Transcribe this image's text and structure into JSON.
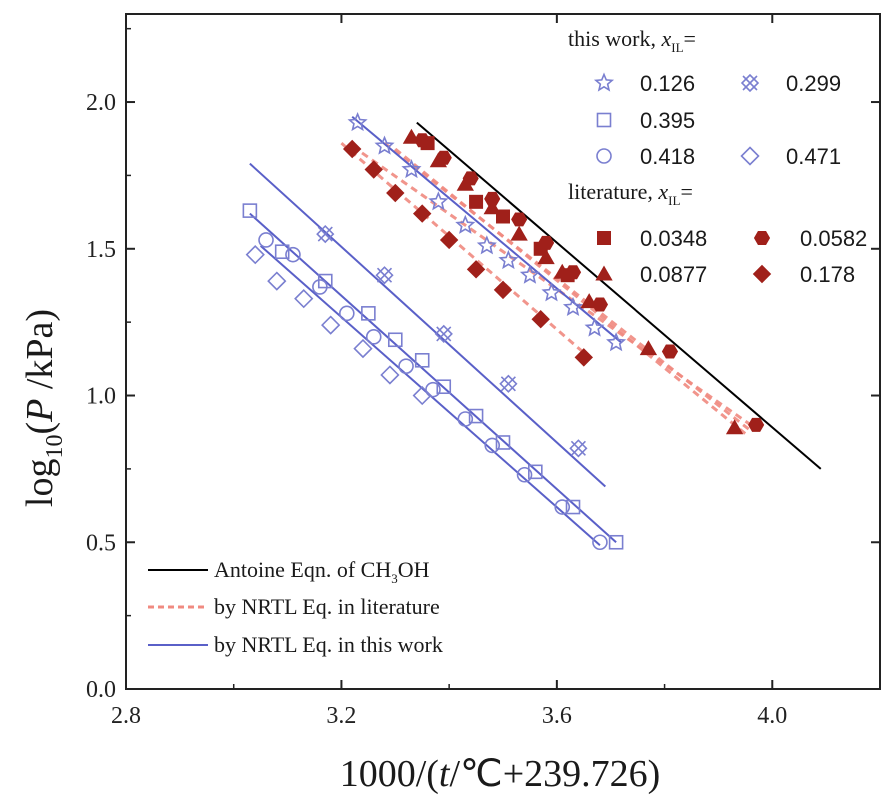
{
  "chart_data": {
    "type": "scatter",
    "xlabel_parts": {
      "a": "1000/(",
      "t": "t",
      "b": "/℃+239.726)"
    },
    "ylabel_parts": {
      "a": "log",
      "sub": "10",
      "b": "(",
      "p": "P",
      "c": " /kPa)"
    },
    "xlim": [
      2.8,
      4.2
    ],
    "ylim": [
      0.0,
      2.3
    ],
    "xticks": [
      "2.8",
      "3.2",
      "3.6",
      "4.0"
    ],
    "yticks": [
      "0.0",
      "0.5",
      "1.0",
      "1.5",
      "2.0"
    ],
    "legend_groups": {
      "this_work_title": "this work, ",
      "literature_title": "literature, ",
      "x_symbol": "x",
      "x_sub": "IL",
      "equals": "="
    },
    "line_legend": {
      "antoine_a": "Antoine Eqn. of CH",
      "antoine_sub": "3",
      "antoine_b": "OH",
      "nrtl_literature": "by NRTL Eq. in literature",
      "nrtl_this_work": "by NRTL Eq. in this work"
    },
    "colors": {
      "this_work": "#7a7fd0",
      "this_work_line": "#5a60c8",
      "literature": "#a0201a",
      "literature_line": "#f08a80",
      "antoine": "#000000"
    },
    "series": [
      {
        "name": "0.126",
        "group": "this_work",
        "marker": "star",
        "x": [
          3.23,
          3.28,
          3.33,
          3.38,
          3.43,
          3.47,
          3.51,
          3.55,
          3.59,
          3.63,
          3.67,
          3.71
        ],
        "y": [
          1.93,
          1.85,
          1.77,
          1.66,
          1.58,
          1.51,
          1.46,
          1.41,
          1.35,
          1.3,
          1.23,
          1.18
        ]
      },
      {
        "name": "0.299",
        "group": "this_work",
        "marker": "xsquare",
        "x": [
          3.17,
          3.28,
          3.39,
          3.51,
          3.64
        ],
        "y": [
          1.55,
          1.41,
          1.21,
          1.04,
          0.82
        ]
      },
      {
        "name": "0.395",
        "group": "this_work",
        "marker": "square",
        "x": [
          3.03,
          3.09,
          3.17,
          3.25,
          3.3,
          3.35,
          3.39,
          3.45,
          3.5,
          3.56,
          3.63,
          3.71
        ],
        "y": [
          1.63,
          1.49,
          1.39,
          1.28,
          1.19,
          1.12,
          1.03,
          0.93,
          0.84,
          0.74,
          0.62,
          0.5
        ]
      },
      {
        "name": "0.418",
        "group": "this_work",
        "marker": "circle",
        "x": [
          3.06,
          3.11,
          3.16,
          3.21,
          3.26,
          3.32,
          3.37,
          3.43,
          3.48,
          3.54,
          3.61,
          3.68
        ],
        "y": [
          1.53,
          1.48,
          1.37,
          1.28,
          1.2,
          1.1,
          1.02,
          0.92,
          0.83,
          0.73,
          0.62,
          0.5
        ]
      },
      {
        "name": "0.471",
        "group": "this_work",
        "marker": "diamond",
        "x": [
          3.04,
          3.08,
          3.13,
          3.18,
          3.24,
          3.29,
          3.35
        ],
        "y": [
          1.48,
          1.39,
          1.33,
          1.24,
          1.16,
          1.07,
          1.0
        ]
      },
      {
        "name": "0.0348",
        "group": "literature",
        "marker": "square",
        "x": [
          3.36,
          3.45,
          3.5,
          3.57,
          3.62
        ],
        "y": [
          1.86,
          1.66,
          1.61,
          1.5,
          1.41
        ]
      },
      {
        "name": "0.0582",
        "group": "literature",
        "marker": "hexagon",
        "x": [
          3.35,
          3.39,
          3.44,
          3.48,
          3.53,
          3.58,
          3.63,
          3.68,
          3.81,
          3.97
        ],
        "y": [
          1.87,
          1.81,
          1.74,
          1.67,
          1.6,
          1.52,
          1.42,
          1.31,
          1.15,
          0.9
        ]
      },
      {
        "name": "0.0877",
        "group": "literature",
        "marker": "triangle",
        "x": [
          3.33,
          3.38,
          3.43,
          3.48,
          3.53,
          3.58,
          3.61,
          3.66,
          3.77,
          3.93
        ],
        "y": [
          1.88,
          1.8,
          1.72,
          1.64,
          1.55,
          1.47,
          1.42,
          1.32,
          1.16,
          0.89
        ]
      },
      {
        "name": "0.178",
        "group": "literature",
        "marker": "diamond",
        "x": [
          3.22,
          3.26,
          3.3,
          3.35,
          3.4,
          3.45,
          3.5,
          3.57,
          3.65
        ],
        "y": [
          1.84,
          1.77,
          1.69,
          1.62,
          1.53,
          1.43,
          1.36,
          1.26,
          1.13
        ]
      }
    ],
    "lines": [
      {
        "kind": "antoine",
        "x": [
          3.34,
          4.09
        ],
        "y": [
          1.93,
          0.75
        ]
      },
      {
        "kind": "nrtl_literature",
        "x": [
          3.22,
          3.96
        ],
        "y": [
          1.85,
          0.9
        ]
      },
      {
        "kind": "nrtl_literature",
        "x": [
          3.28,
          3.96
        ],
        "y": [
          1.86,
          0.88
        ]
      },
      {
        "kind": "nrtl_literature",
        "x": [
          3.3,
          3.95
        ],
        "y": [
          1.84,
          0.87
        ]
      },
      {
        "kind": "nrtl_literature",
        "x": [
          3.2,
          3.66
        ],
        "y": [
          1.86,
          1.13
        ]
      },
      {
        "kind": "nrtl_this_work",
        "x": [
          3.22,
          3.72
        ],
        "y": [
          1.95,
          1.18
        ]
      },
      {
        "kind": "nrtl_this_work",
        "x": [
          3.03,
          3.69
        ],
        "y": [
          1.79,
          0.69
        ]
      },
      {
        "kind": "nrtl_this_work",
        "x": [
          3.03,
          3.71
        ],
        "y": [
          1.62,
          0.5
        ]
      },
      {
        "kind": "nrtl_this_work",
        "x": [
          3.05,
          3.68
        ],
        "y": [
          1.51,
          0.49
        ]
      }
    ]
  }
}
